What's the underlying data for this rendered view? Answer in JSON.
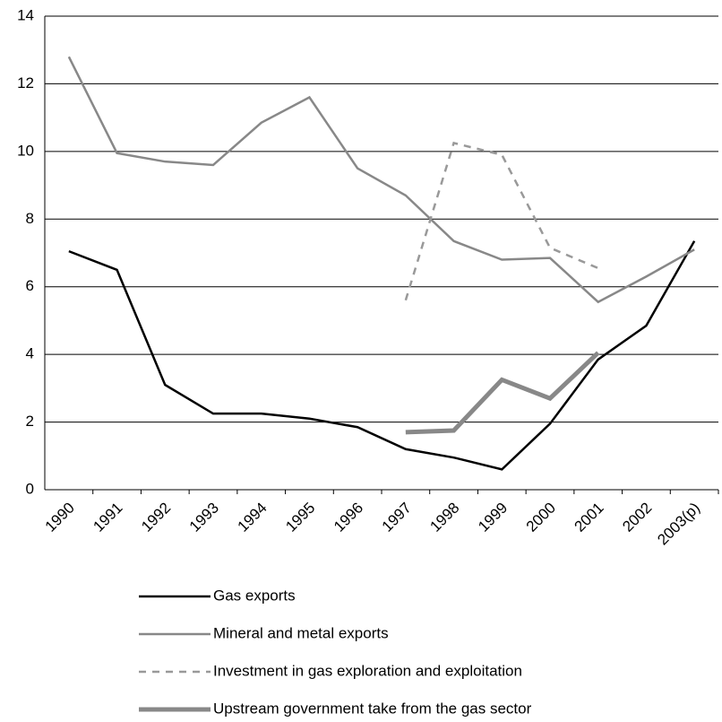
{
  "chart_data": {
    "type": "line",
    "categories": [
      "1990",
      "1991",
      "1992",
      "1993",
      "1994",
      "1995",
      "1996",
      "1997",
      "1998",
      "1999",
      "2000",
      "2001",
      "2002",
      "2003(p)"
    ],
    "series": [
      {
        "name": "Gas exports",
        "color": "#000000",
        "values": [
          7.05,
          6.5,
          3.1,
          2.25,
          2.25,
          2.1,
          1.85,
          1.2,
          0.95,
          0.6,
          1.95,
          3.85,
          4.85,
          7.35
        ]
      },
      {
        "name": "Mineral and metal exports",
        "color": "#888888",
        "values": [
          12.8,
          9.95,
          9.7,
          9.6,
          10.85,
          11.6,
          9.5,
          8.7,
          7.35,
          6.8,
          6.85,
          5.55,
          6.3,
          7.1
        ]
      },
      {
        "name": "Investment in gas exploration and exploitation",
        "color": "#999999",
        "dashed": true,
        "values": [
          null,
          null,
          null,
          null,
          null,
          null,
          null,
          5.6,
          10.25,
          9.9,
          7.15,
          6.55,
          null,
          null
        ]
      },
      {
        "name": "Upstream government take from the gas sector",
        "color": "#888888",
        "thick": true,
        "values": [
          null,
          null,
          null,
          null,
          null,
          null,
          null,
          1.7,
          1.75,
          3.25,
          2.7,
          4.05,
          null,
          null
        ]
      }
    ],
    "ylim": [
      0,
      14
    ],
    "yticks": [
      0,
      2,
      4,
      6,
      8,
      10,
      12,
      14
    ],
    "grid": true
  }
}
